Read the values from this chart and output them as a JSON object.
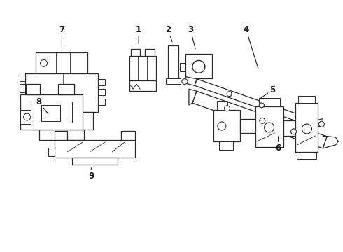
{
  "background_color": "#ffffff",
  "line_color": "#2a2a2a",
  "line_width": 0.9,
  "figsize": [
    4.9,
    3.6
  ],
  "dpi": 100
}
